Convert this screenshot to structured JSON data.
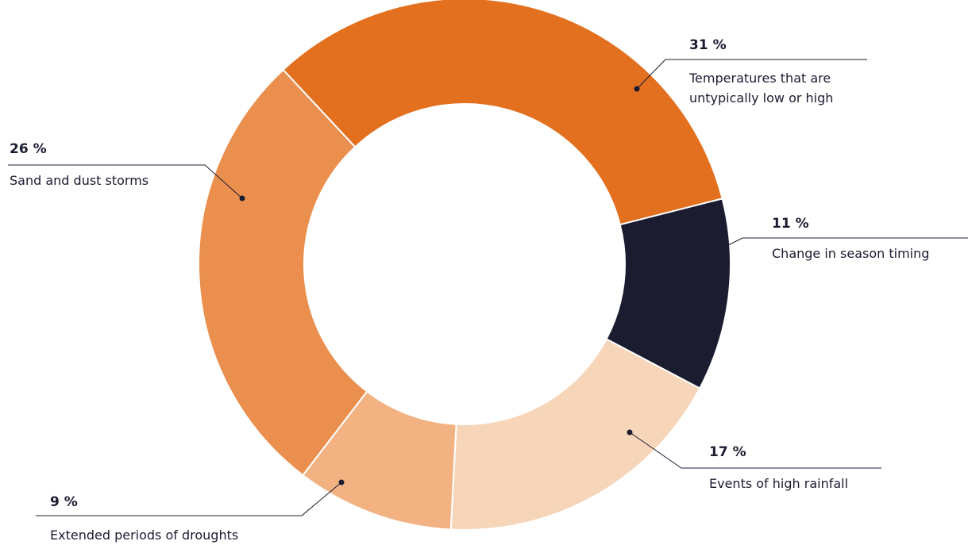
{
  "chart_data": {
    "type": "donut",
    "categories": [
      "Temperatures that are untypically low or high",
      "Change in season timing",
      "Events of high rainfall",
      "Extended periods of droughts",
      "Sand and dust storms"
    ],
    "values": [
      31,
      11,
      17,
      9,
      26
    ],
    "value_labels": [
      "31 %",
      "11 %",
      "17 %",
      "9 %",
      "26 %"
    ],
    "colors": [
      "#e2701f",
      "#1b1c30",
      "#f7d5b9",
      "#f2b282",
      "#ea8f4e"
    ]
  }
}
